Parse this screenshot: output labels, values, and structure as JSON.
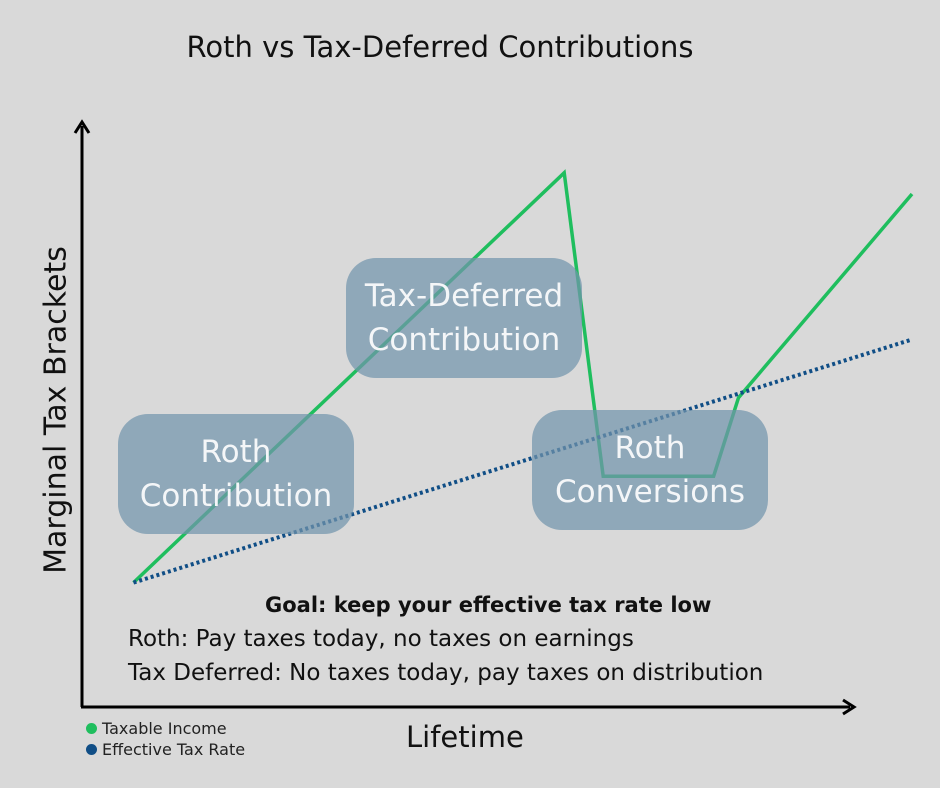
{
  "title": "Roth vs Tax-Deferred Contributions",
  "ylabel": "Marginal Tax Brackets",
  "xlabel": "Lifetime",
  "regions": [
    {
      "name": "roth-contribution",
      "lines": [
        "Roth",
        "Contribution"
      ]
    },
    {
      "name": "tax-deferred-contribution",
      "lines": [
        "Tax-Deferred",
        "Contribution"
      ]
    },
    {
      "name": "roth-conversions",
      "lines": [
        "Roth",
        "Conversions"
      ]
    }
  ],
  "notes": {
    "goal": "Goal: keep your effective tax rate low",
    "roth": "Roth: Pay taxes today, no taxes on earnings",
    "tax_deferred": "Tax Deferred: No taxes today, pay taxes on distribution"
  },
  "legend": [
    {
      "label": "Taxable Income",
      "color": "#1fbe5e"
    },
    {
      "label": "Effective Tax Rate",
      "color": "#104e86"
    }
  ],
  "chart_data": {
    "type": "line",
    "xlim": [
      0,
      100
    ],
    "ylim": [
      0,
      100
    ],
    "series": [
      {
        "name": "Taxable Income",
        "color": "#1fbe5e",
        "style": "solid",
        "x": [
          6.2,
          58.1,
          62.8,
          76.1,
          79.1,
          100
        ],
        "y": [
          21.2,
          91.0,
          39.3,
          39.3,
          52.7,
          87.4
        ]
      },
      {
        "name": "Effective Tax Rate",
        "color": "#104e86",
        "style": "dotted",
        "x": [
          6.2,
          100
        ],
        "y": [
          21.2,
          62.6
        ]
      }
    ]
  }
}
